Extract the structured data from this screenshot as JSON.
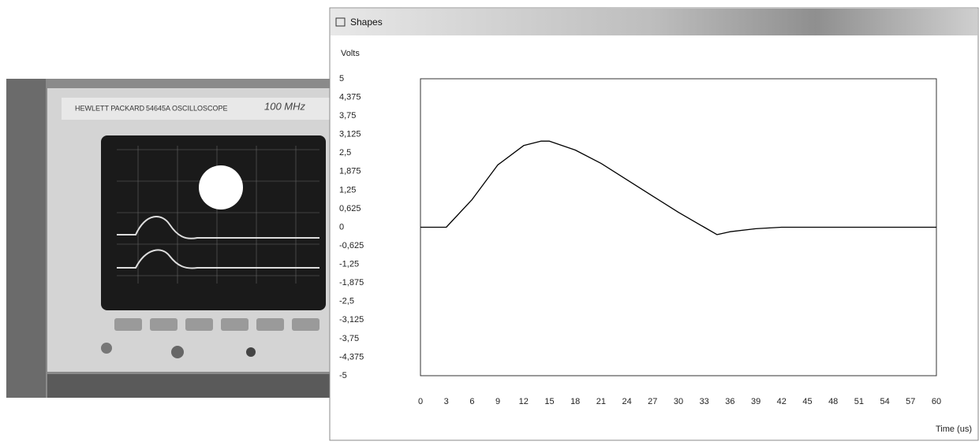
{
  "photo": {
    "brand": "HEWLETT PACKARD",
    "model": "54645A OSCILLOSCOPE",
    "bandwidth": "100 MHz"
  },
  "chart_data": {
    "type": "line",
    "title": "Shapes",
    "y_label": "Volts",
    "x_label": "Time (us)",
    "color": "#000000",
    "x": [
      0,
      3,
      6,
      9,
      12,
      14,
      15,
      18,
      21,
      24,
      27,
      30,
      33,
      34.5,
      36,
      39,
      42,
      60
    ],
    "values": [
      0,
      0,
      0.93,
      2.1,
      2.75,
      2.9,
      2.9,
      2.6,
      2.15,
      1.6,
      1.05,
      0.5,
      0,
      -0.25,
      -0.15,
      -0.05,
      0,
      0
    ],
    "xlim": [
      0,
      60
    ],
    "xticks": [
      0,
      3,
      6,
      9,
      12,
      15,
      18,
      21,
      24,
      27,
      30,
      33,
      36,
      39,
      42,
      45,
      48,
      51,
      54,
      57,
      60
    ],
    "ylim": [
      -5,
      5
    ],
    "yticks": [
      5,
      {
        "value": 4.375,
        "label": "4,375"
      },
      {
        "value": 3.75,
        "label": "3,75"
      },
      {
        "value": 3.125,
        "label": "3,125"
      },
      {
        "value": 2.5,
        "label": "2,5"
      },
      {
        "value": 1.875,
        "label": "1,875"
      },
      {
        "value": 1.25,
        "label": "1,25"
      },
      {
        "value": 0.625,
        "label": "0,625"
      },
      0,
      {
        "value": -0.625,
        "label": "-0,625"
      },
      {
        "value": -1.25,
        "label": "-1,25"
      },
      {
        "value": -1.875,
        "label": "-1,875"
      },
      {
        "value": -2.5,
        "label": "-2,5"
      },
      {
        "value": -3.125,
        "label": "-3,125"
      },
      {
        "value": -3.75,
        "label": "-3,75"
      },
      {
        "value": -4.375,
        "label": "-4,375"
      },
      -5
    ]
  }
}
